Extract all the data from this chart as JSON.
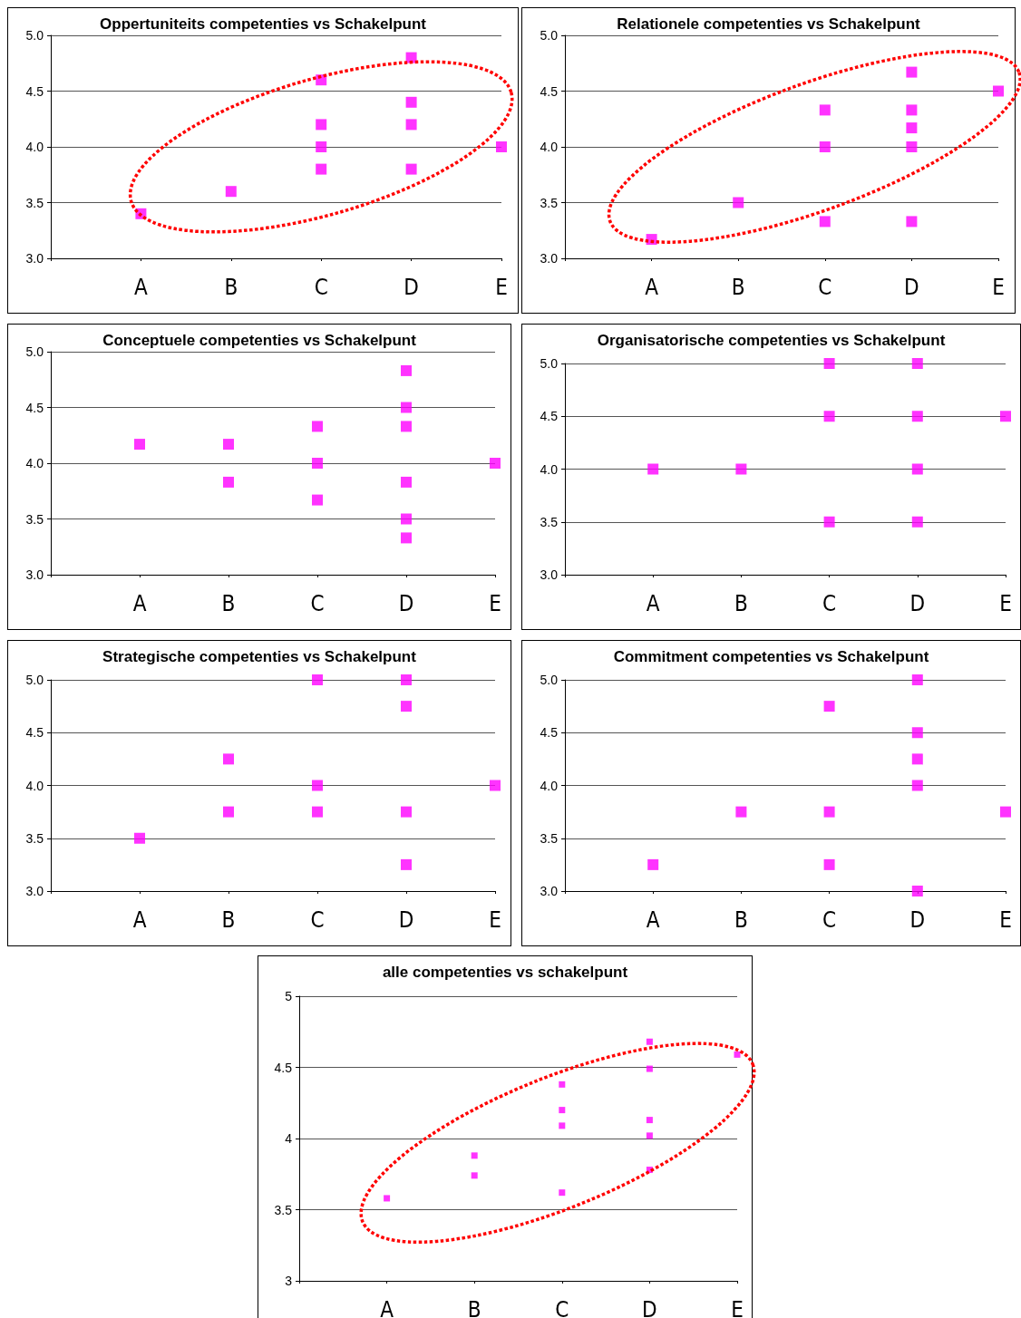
{
  "chart_data": [
    {
      "type": "scatter",
      "title": "Oppertuniteits competenties vs Schakelpunt",
      "categories": [
        null,
        "A",
        "B",
        "C",
        "D",
        "E"
      ],
      "ylim": [
        3,
        5
      ],
      "yticks": [
        {
          "value": 3,
          "label": "3.0"
        },
        {
          "value": 3.5,
          "label": "3.5"
        },
        {
          "value": 4,
          "label": "4.0"
        },
        {
          "value": 4.5,
          "label": "4.5"
        },
        {
          "value": 5,
          "label": "5.0"
        }
      ],
      "grid": "y",
      "marker": "square",
      "series": [
        {
          "color": "#ff00ff",
          "x": [
            "A",
            "B",
            "C",
            "C",
            "C",
            "C",
            "D",
            "D",
            "D",
            "D",
            "E"
          ],
          "values": [
            3.4,
            3.6,
            4.6,
            4.2,
            4.0,
            3.8,
            4.8,
            4.4,
            4.2,
            3.8,
            4.0
          ]
        }
      ]
    },
    {
      "type": "scatter",
      "title": "Relationele competenties vs Schakelpunt",
      "categories": [
        null,
        "A",
        "B",
        "C",
        "D",
        "E"
      ],
      "ylim": [
        3,
        5
      ],
      "yticks": [
        {
          "value": 3,
          "label": "3.0"
        },
        {
          "value": 3.5,
          "label": "3.5"
        },
        {
          "value": 4,
          "label": "4.0"
        },
        {
          "value": 4.5,
          "label": "4.5"
        },
        {
          "value": 5,
          "label": "5.0"
        }
      ],
      "grid": "y",
      "marker": "square",
      "series": [
        {
          "color": "#ff00ff",
          "x": [
            "A",
            "B",
            "C",
            "C",
            "C",
            "D",
            "D",
            "D",
            "D",
            "D",
            "E"
          ],
          "values": [
            3.17,
            3.5,
            4.33,
            4.0,
            3.33,
            4.67,
            4.33,
            4.17,
            4.0,
            3.33,
            4.5
          ]
        }
      ]
    },
    {
      "type": "scatter",
      "title": "Conceptuele competenties vs Schakelpunt",
      "categories": [
        null,
        "A",
        "B",
        "C",
        "D",
        "E"
      ],
      "ylim": [
        3,
        5
      ],
      "yticks": [
        {
          "value": 3,
          "label": "3.0"
        },
        {
          "value": 3.5,
          "label": "3.5"
        },
        {
          "value": 4,
          "label": "4.0"
        },
        {
          "value": 4.5,
          "label": "4.5"
        },
        {
          "value": 5,
          "label": "5.0"
        }
      ],
      "grid": "y",
      "marker": "square",
      "series": [
        {
          "color": "#ff00ff",
          "x": [
            "A",
            "B",
            "B",
            "C",
            "C",
            "C",
            "D",
            "D",
            "D",
            "D",
            "D",
            "D",
            "E"
          ],
          "values": [
            4.17,
            4.17,
            3.83,
            4.33,
            4.0,
            3.67,
            4.83,
            4.5,
            4.33,
            3.83,
            3.5,
            3.33,
            4.0
          ]
        }
      ]
    },
    {
      "type": "scatter",
      "title": "Organisatorische competenties vs Schakelpunt",
      "categories": [
        null,
        "A",
        "B",
        "C",
        "D",
        "E"
      ],
      "ylim": [
        3,
        5
      ],
      "yticks": [
        {
          "value": 3,
          "label": "3.0"
        },
        {
          "value": 3.5,
          "label": "3.5"
        },
        {
          "value": 4,
          "label": "4.0"
        },
        {
          "value": 4.5,
          "label": "4.5"
        },
        {
          "value": 5,
          "label": "5.0"
        }
      ],
      "grid": "y",
      "marker": "square",
      "series": [
        {
          "color": "#ff00ff",
          "x": [
            "A",
            "B",
            "C",
            "C",
            "C",
            "D",
            "D",
            "D",
            "D",
            "E"
          ],
          "values": [
            4.0,
            4.0,
            5.0,
            4.5,
            3.5,
            5.0,
            4.5,
            4.0,
            3.5,
            4.5
          ]
        }
      ]
    },
    {
      "type": "scatter",
      "title": "Strategische competenties vs Schakelpunt",
      "categories": [
        null,
        "A",
        "B",
        "C",
        "D",
        "E"
      ],
      "ylim": [
        3,
        5
      ],
      "yticks": [
        {
          "value": 3,
          "label": "3.0"
        },
        {
          "value": 3.5,
          "label": "3.5"
        },
        {
          "value": 4,
          "label": "4.0"
        },
        {
          "value": 4.5,
          "label": "4.5"
        },
        {
          "value": 5,
          "label": "5.0"
        }
      ],
      "grid": "y",
      "marker": "square",
      "series": [
        {
          "color": "#ff00ff",
          "x": [
            "A",
            "B",
            "B",
            "C",
            "C",
            "C",
            "D",
            "D",
            "D",
            "D",
            "E"
          ],
          "values": [
            3.5,
            4.25,
            3.75,
            5.0,
            4.0,
            3.75,
            5.0,
            4.75,
            3.75,
            3.25,
            4.0
          ]
        }
      ]
    },
    {
      "type": "scatter",
      "title": "Commitment competenties vs Schakelpunt",
      "categories": [
        null,
        "A",
        "B",
        "C",
        "D",
        "E"
      ],
      "ylim": [
        3,
        5
      ],
      "yticks": [
        {
          "value": 3,
          "label": "3.0"
        },
        {
          "value": 3.5,
          "label": "3.5"
        },
        {
          "value": 4,
          "label": "4.0"
        },
        {
          "value": 4.5,
          "label": "4.5"
        },
        {
          "value": 5,
          "label": "5.0"
        }
      ],
      "grid": "y",
      "marker": "square",
      "series": [
        {
          "color": "#ff00ff",
          "x": [
            "A",
            "B",
            "C",
            "C",
            "C",
            "D",
            "D",
            "D",
            "D",
            "D",
            "E"
          ],
          "values": [
            3.25,
            3.75,
            4.75,
            3.75,
            3.25,
            5.0,
            4.5,
            4.25,
            4.0,
            3.0,
            3.75
          ]
        }
      ]
    },
    {
      "type": "scatter",
      "title": "alle competenties vs schakelpunt",
      "categories": [
        null,
        "A",
        "B",
        "C",
        "D",
        "E"
      ],
      "ylim": [
        3,
        5
      ],
      "yticks": [
        3,
        3.5,
        4,
        4.5,
        5
      ],
      "grid": "y",
      "marker": "square",
      "series": [
        {
          "color": "#ff00ff",
          "x": [
            "A",
            "B",
            "B",
            "C",
            "C",
            "C",
            "C",
            "D",
            "D",
            "D",
            "D",
            "D",
            "E"
          ],
          "values": [
            3.58,
            3.88,
            3.74,
            4.38,
            4.2,
            4.09,
            3.62,
            4.68,
            4.49,
            4.13,
            4.02,
            3.78,
            4.59
          ]
        }
      ]
    }
  ]
}
